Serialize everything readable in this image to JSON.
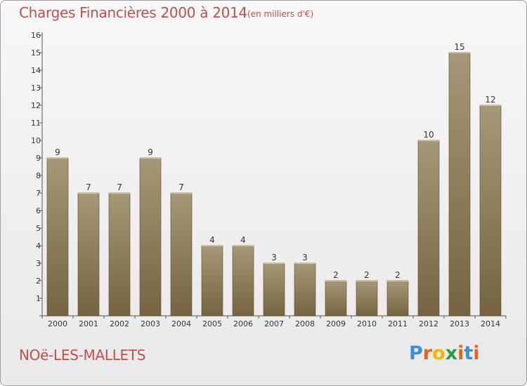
{
  "title": "Charges Financières 2000 à 2014",
  "subtitle": "(en milliers d'€)",
  "location": "NOë-LES-MALLETS",
  "logo": {
    "letters": [
      "P",
      "r",
      "o",
      "x",
      "i",
      "t",
      "i"
    ],
    "colors": [
      "#3b8fd4",
      "#e8631a",
      "#f2b705",
      "#2e9b3e",
      "#e8631a",
      "#3b8fd4",
      "#e8631a"
    ]
  },
  "colors": {
    "bar_top": "#a59878",
    "bar_bottom": "#75643f",
    "accent": "#c0504d"
  },
  "chart_data": {
    "type": "bar",
    "categories": [
      "2000",
      "2001",
      "2002",
      "2003",
      "2004",
      "2005",
      "2006",
      "2007",
      "2008",
      "2009",
      "2010",
      "2011",
      "2012",
      "2013",
      "2014"
    ],
    "values": [
      9,
      7,
      7,
      9,
      7,
      4,
      4,
      3,
      3,
      2,
      2,
      2,
      10,
      15,
      12
    ],
    "data_labels": [
      "9",
      "7",
      "7",
      "9",
      "7",
      "4",
      "4",
      "3",
      "3",
      "2",
      "2",
      "2",
      "10",
      "15",
      "12"
    ],
    "y_ticks": [
      "1",
      "2",
      "3",
      "4",
      "5",
      "6",
      "7",
      "8",
      "9",
      "10",
      "11",
      "12",
      "13",
      "14",
      "15",
      "16"
    ],
    "title": "Charges Financières 2000 à 2014",
    "xlabel": "",
    "ylabel": "",
    "ylim": [
      0,
      16
    ],
    "grid": false
  }
}
